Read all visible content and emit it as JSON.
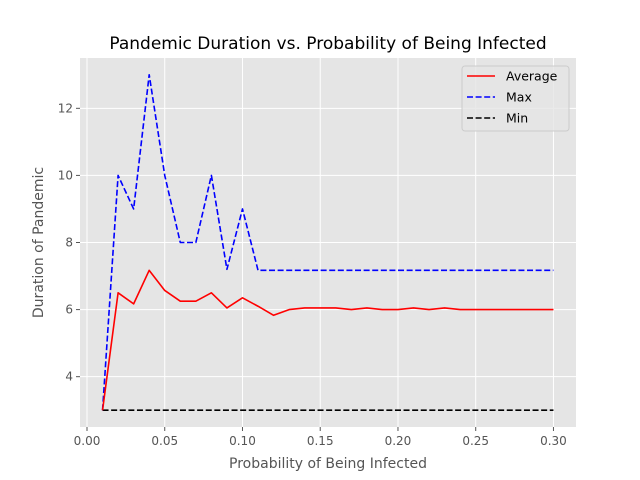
{
  "chart_data": {
    "type": "line",
    "title": "Pandemic Duration vs. Probability of Being Infected",
    "xlabel": "Probability of Being Infected",
    "ylabel": "Duration of Pandemic",
    "xlim": [
      -0.0045,
      0.3145
    ],
    "ylim": [
      2.5,
      13.5
    ],
    "xticks": [
      0.0,
      0.05,
      0.1,
      0.15,
      0.2,
      0.25,
      0.3
    ],
    "xtick_labels": [
      "0.00",
      "0.05",
      "0.10",
      "0.15",
      "0.20",
      "0.25",
      "0.30"
    ],
    "yticks": [
      4,
      6,
      8,
      10,
      12
    ],
    "ytick_labels": [
      "4",
      "6",
      "8",
      "10",
      "12"
    ],
    "grid": true,
    "legend_position": "top-right",
    "x": [
      0.01,
      0.02,
      0.03,
      0.04,
      0.05,
      0.06,
      0.07,
      0.08,
      0.09,
      0.1,
      0.11,
      0.12,
      0.13,
      0.14,
      0.15,
      0.16,
      0.17,
      0.18,
      0.19,
      0.2,
      0.21,
      0.22,
      0.23,
      0.24,
      0.25,
      0.26,
      0.27,
      0.28,
      0.29,
      0.3
    ],
    "series": [
      {
        "name": "Average",
        "color": "#ff0000",
        "dash": "solid",
        "values": [
          3.0,
          6.5,
          6.17,
          7.17,
          6.57,
          6.25,
          6.25,
          6.5,
          6.05,
          6.35,
          6.1,
          5.83,
          6.0,
          6.05,
          6.05,
          6.05,
          6.0,
          6.05,
          6.0,
          6.0,
          6.05,
          6.0,
          6.05,
          6.0,
          6.0,
          6.0,
          6.0,
          6.0,
          6.0,
          6.0
        ]
      },
      {
        "name": "Max",
        "color": "#0000ff",
        "dash": "dashed",
        "values": [
          3.0,
          10.0,
          9.0,
          13.0,
          10.0,
          8.0,
          8.0,
          10.0,
          7.2,
          9.0,
          7.17,
          7.17,
          7.17,
          7.17,
          7.17,
          7.17,
          7.17,
          7.17,
          7.17,
          7.17,
          7.17,
          7.17,
          7.17,
          7.17,
          7.17,
          7.17,
          7.17,
          7.17,
          7.17,
          7.17
        ]
      },
      {
        "name": "Min",
        "color": "#000000",
        "dash": "dashed",
        "values": [
          3,
          3,
          3,
          3,
          3,
          3,
          3,
          3,
          3,
          3,
          3,
          3,
          3,
          3,
          3,
          3,
          3,
          3,
          3,
          3,
          3,
          3,
          3,
          3,
          3,
          3,
          3,
          3,
          3,
          3
        ]
      }
    ]
  }
}
